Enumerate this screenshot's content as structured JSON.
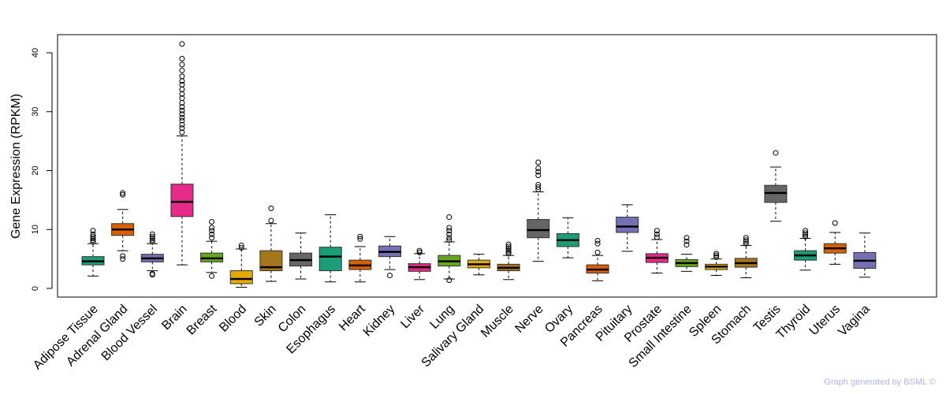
{
  "chart_data": {
    "type": "boxplot",
    "ylabel": "Gene Expression (RPKM)",
    "xlabel": "",
    "ylim": [
      -1,
      43
    ],
    "yticks": [
      0,
      10,
      20,
      30,
      40
    ],
    "highlight": "Brain",
    "highlight_color": "#ff0000",
    "credit": "Graph generated by BSML ©",
    "categories": [
      {
        "name": "Adipose Tissue",
        "color": "#1b9e77",
        "whisker_low": 2.1,
        "q1": 4.0,
        "median": 4.6,
        "q3": 5.4,
        "whisker_high": 7.6,
        "outliers": [
          7.9,
          8.2,
          8.5,
          8.8,
          9.2,
          9.8
        ]
      },
      {
        "name": "Adrenal Gland",
        "color": "#d95f02",
        "whisker_low": 6.4,
        "q1": 9.0,
        "median": 10.0,
        "q3": 11.0,
        "whisker_high": 13.4,
        "outliers": [
          5.0,
          5.5,
          15.9,
          16.2
        ]
      },
      {
        "name": "Blood Vessel",
        "color": "#7570b3",
        "whisker_low": 3.0,
        "q1": 4.5,
        "median": 5.1,
        "q3": 5.8,
        "whisker_high": 7.6,
        "outliers": [
          2.3,
          2.5,
          7.9,
          8.2,
          8.5,
          8.8,
          9.2
        ]
      },
      {
        "name": "Brain",
        "color": "#e7298a",
        "whisker_low": 4.0,
        "q1": 12.2,
        "median": 14.7,
        "q3": 17.7,
        "whisker_high": 25.9,
        "outliers": [
          26.5,
          27.2,
          27.8,
          28.5,
          29.0,
          29.6,
          30.2,
          30.8,
          31.5,
          32.3,
          33.0,
          33.8,
          34.6,
          35.2,
          36.0,
          37.0,
          38.0,
          39.0,
          41.5
        ]
      },
      {
        "name": "Breast",
        "color": "#66a61e",
        "whisker_low": 2.7,
        "q1": 4.5,
        "median": 5.1,
        "q3": 6.0,
        "whisker_high": 8.0,
        "outliers": [
          2.1,
          8.6,
          9.2,
          9.8,
          10.3,
          11.3
        ]
      },
      {
        "name": "Blood",
        "color": "#e6ab02",
        "whisker_low": 0.2,
        "q1": 0.8,
        "median": 1.6,
        "q3": 3.0,
        "whisker_high": 6.7,
        "outliers": [
          6.9,
          7.3
        ]
      },
      {
        "name": "Skin",
        "color": "#a6761d",
        "whisker_low": 1.2,
        "q1": 3.0,
        "median": 3.6,
        "q3": 6.4,
        "whisker_high": 11.0,
        "outliers": [
          11.5,
          13.6
        ]
      },
      {
        "name": "Colon",
        "color": "#666666",
        "whisker_low": 1.6,
        "q1": 3.8,
        "median": 4.8,
        "q3": 6.0,
        "whisker_high": 9.4,
        "outliers": []
      },
      {
        "name": "Esophagus",
        "color": "#1b9e77",
        "whisker_low": 1.1,
        "q1": 3.0,
        "median": 5.4,
        "q3": 7.0,
        "whisker_high": 12.5,
        "outliers": []
      },
      {
        "name": "Heart",
        "color": "#d95f02",
        "whisker_low": 1.1,
        "q1": 3.2,
        "median": 3.9,
        "q3": 4.8,
        "whisker_high": 7.1,
        "outliers": [
          8.4,
          8.8
        ]
      },
      {
        "name": "Kidney",
        "color": "#7570b3",
        "whisker_low": 3.2,
        "q1": 5.4,
        "median": 6.2,
        "q3": 7.2,
        "whisker_high": 8.8,
        "outliers": [
          2.2
        ]
      },
      {
        "name": "Liver",
        "color": "#e7298a",
        "whisker_low": 1.5,
        "q1": 2.9,
        "median": 3.6,
        "q3": 4.2,
        "whisker_high": 5.9,
        "outliers": [
          6.1,
          6.4
        ]
      },
      {
        "name": "Lung",
        "color": "#66a61e",
        "whisker_low": 1.6,
        "q1": 3.8,
        "median": 4.6,
        "q3": 5.6,
        "whisker_high": 7.9,
        "outliers": [
          1.4,
          8.2,
          8.6,
          9.2,
          9.8,
          10.3,
          12.1
        ]
      },
      {
        "name": "Salivary Gland",
        "color": "#e6ab02",
        "whisker_low": 2.3,
        "q1": 3.5,
        "median": 4.1,
        "q3": 4.8,
        "whisker_high": 5.8,
        "outliers": []
      },
      {
        "name": "Muscle",
        "color": "#a6761d",
        "whisker_low": 1.5,
        "q1": 3.0,
        "median": 3.5,
        "q3": 4.1,
        "whisker_high": 5.6,
        "outliers": [
          5.9,
          6.2,
          6.5,
          6.8,
          7.1,
          7.5
        ]
      },
      {
        "name": "Nerve",
        "color": "#666666",
        "whisker_low": 4.6,
        "q1": 8.6,
        "median": 9.9,
        "q3": 11.7,
        "whisker_high": 16.4,
        "outliers": [
          16.8,
          17.2,
          17.6,
          19.2,
          19.8,
          20.4,
          21.4
        ]
      },
      {
        "name": "Ovary",
        "color": "#1b9e77",
        "whisker_low": 5.2,
        "q1": 7.1,
        "median": 8.2,
        "q3": 9.3,
        "whisker_high": 12.0,
        "outliers": []
      },
      {
        "name": "Pancreas",
        "color": "#d95f02",
        "whisker_low": 1.3,
        "q1": 2.6,
        "median": 3.2,
        "q3": 4.0,
        "whisker_high": 5.6,
        "outliers": [
          6.1,
          7.6,
          8.1
        ]
      },
      {
        "name": "Pituitary",
        "color": "#7570b3",
        "whisker_low": 6.3,
        "q1": 9.5,
        "median": 10.5,
        "q3": 12.1,
        "whisker_high": 14.2,
        "outliers": []
      },
      {
        "name": "Prostate",
        "color": "#e7298a",
        "whisker_low": 2.6,
        "q1": 4.4,
        "median": 5.2,
        "q3": 5.9,
        "whisker_high": 8.3,
        "outliers": [
          8.7,
          9.2,
          9.8
        ]
      },
      {
        "name": "Small Intestine",
        "color": "#66a61e",
        "whisker_low": 2.9,
        "q1": 3.7,
        "median": 4.3,
        "q3": 4.9,
        "whisker_high": 5.8,
        "outliers": [
          7.4,
          8.0,
          8.6
        ]
      },
      {
        "name": "Spleen",
        "color": "#e6ab02",
        "whisker_low": 2.2,
        "q1": 3.2,
        "median": 3.7,
        "q3": 4.1,
        "whisker_high": 5.0,
        "outliers": [
          5.3,
          5.6,
          5.9
        ]
      },
      {
        "name": "Stomach",
        "color": "#a6761d",
        "whisker_low": 1.8,
        "q1": 3.6,
        "median": 4.3,
        "q3": 5.1,
        "whisker_high": 7.3,
        "outliers": [
          7.6,
          7.9,
          8.2,
          8.6
        ]
      },
      {
        "name": "Testis",
        "color": "#666666",
        "whisker_low": 11.4,
        "q1": 14.6,
        "median": 16.2,
        "q3": 17.5,
        "whisker_high": 20.6,
        "outliers": [
          23.0
        ]
      },
      {
        "name": "Thyroid",
        "color": "#1b9e77",
        "whisker_low": 3.1,
        "q1": 4.8,
        "median": 5.6,
        "q3": 6.4,
        "whisker_high": 8.5,
        "outliers": [
          8.8,
          9.1,
          9.4,
          9.8
        ]
      },
      {
        "name": "Uterus",
        "color": "#d95f02",
        "whisker_low": 4.1,
        "q1": 6.0,
        "median": 6.8,
        "q3": 7.6,
        "whisker_high": 9.5,
        "outliers": [
          11.1
        ]
      },
      {
        "name": "Vagina",
        "color": "#7570b3",
        "whisker_low": 1.9,
        "q1": 3.4,
        "median": 4.7,
        "q3": 6.1,
        "whisker_high": 9.4,
        "outliers": []
      }
    ]
  }
}
